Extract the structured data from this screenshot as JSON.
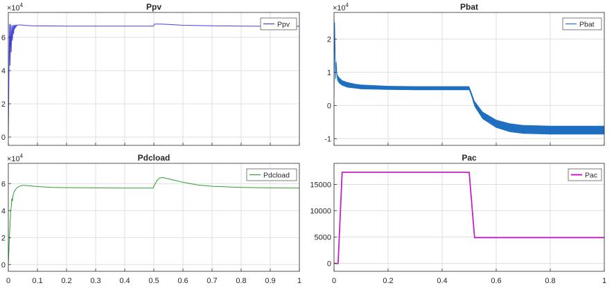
{
  "chart_data": [
    {
      "type": "line",
      "title": "Ppv",
      "exponent_label": "×10",
      "exponent_power": "4",
      "xlim": [
        0,
        1
      ],
      "ylim": [
        -0.5,
        7.5
      ],
      "yticks": [
        0,
        2,
        4,
        6
      ],
      "ytick_labels": [
        "0",
        "2",
        "4",
        "6"
      ],
      "xticks": [
        0,
        0.1,
        0.2,
        0.3,
        0.4,
        0.5,
        0.6,
        0.7,
        0.8,
        0.9,
        1
      ],
      "xtick_labels": [],
      "grid": true,
      "legend": "top-right",
      "series": [
        {
          "name": "Ppv",
          "color": "#4040d8",
          "x": [
            0,
            0.002,
            0.004,
            0.006,
            0.008,
            0.01,
            0.012,
            0.014,
            0.016,
            0.018,
            0.02,
            0.022,
            0.024,
            0.026,
            0.028,
            0.03,
            0.035,
            0.04,
            0.05,
            0.06,
            0.08,
            0.1,
            0.2,
            0.3,
            0.4,
            0.498,
            0.5,
            0.502,
            0.52,
            0.55,
            0.6,
            0.7,
            0.8,
            0.9,
            1.0
          ],
          "values": [
            0,
            3.2,
            6.8,
            4.3,
            6.8,
            5.1,
            6.7,
            5.8,
            6.75,
            6.2,
            6.75,
            6.5,
            6.75,
            6.6,
            6.75,
            6.72,
            6.75,
            6.75,
            6.74,
            6.72,
            6.7,
            6.69,
            6.68,
            6.68,
            6.68,
            6.68,
            6.72,
            6.8,
            6.8,
            6.78,
            6.73,
            6.7,
            6.68,
            6.67,
            6.67
          ]
        }
      ]
    },
    {
      "type": "line",
      "title": "Pbat",
      "exponent_label": "×10",
      "exponent_power": "4",
      "xlim": [
        0,
        1
      ],
      "ylim": [
        -1.2,
        2.8
      ],
      "yticks": [
        -1,
        0,
        1,
        2
      ],
      "ytick_labels": [
        "-1",
        "0",
        "1",
        "2"
      ],
      "xticks": [
        0,
        0.2,
        0.4,
        0.6,
        0.8,
        1
      ],
      "xtick_labels": [],
      "grid": true,
      "legend": "top-right",
      "series": [
        {
          "name": "Pbat",
          "color": "#1f6fc0",
          "x": [
            0,
            0.002,
            0.004,
            0.006,
            0.008,
            0.01,
            0.012,
            0.015,
            0.02,
            0.03,
            0.05,
            0.08,
            0.1,
            0.2,
            0.3,
            0.4,
            0.49,
            0.5,
            0.51,
            0.52,
            0.55,
            0.6,
            0.65,
            0.7,
            0.8,
            0.9,
            1.0
          ],
          "values": [
            0.3,
            2.5,
            1.6,
            0.8,
            1.3,
            1.0,
            0.85,
            0.8,
            0.75,
            0.68,
            0.62,
            0.58,
            0.56,
            0.53,
            0.52,
            0.52,
            0.52,
            0.52,
            0.3,
            0.05,
            -0.3,
            -0.55,
            -0.67,
            -0.72,
            -0.74,
            -0.74,
            -0.74
          ],
          "band": [
            0.12,
            0.12,
            0.12,
            0.1,
            0.1,
            0.09,
            0.09,
            0.09,
            0.09,
            0.08,
            0.08,
            0.07,
            0.07,
            0.06,
            0.06,
            0.06,
            0.06,
            0.06,
            0.07,
            0.09,
            0.11,
            0.12,
            0.13,
            0.13,
            0.13,
            0.13,
            0.13
          ]
        }
      ]
    },
    {
      "type": "line",
      "title": "Pdcload",
      "exponent_label": "×10",
      "exponent_power": "4",
      "xlim": [
        0,
        1
      ],
      "ylim": [
        -0.5,
        7.5
      ],
      "yticks": [
        0,
        2,
        4,
        6
      ],
      "ytick_labels": [
        "0",
        "2",
        "4",
        "6"
      ],
      "xticks": [
        0,
        0.1,
        0.2,
        0.3,
        0.4,
        0.5,
        0.6,
        0.7,
        0.8,
        0.9,
        1
      ],
      "xtick_labels": [
        "0",
        "0.1",
        "0.2",
        "0.3",
        "0.4",
        "0.5",
        "0.6",
        "0.7",
        "0.8",
        "0.9",
        "1"
      ],
      "grid": true,
      "legend": "top-right",
      "series": [
        {
          "name": "Pdcload",
          "color": "#2ca02c",
          "x": [
            0,
            0.002,
            0.004,
            0.006,
            0.008,
            0.01,
            0.012,
            0.014,
            0.016,
            0.02,
            0.03,
            0.04,
            0.05,
            0.06,
            0.08,
            0.1,
            0.15,
            0.2,
            0.3,
            0.4,
            0.498,
            0.5,
            0.51,
            0.52,
            0.53,
            0.55,
            0.6,
            0.65,
            0.7,
            0.8,
            0.9,
            1.0
          ],
          "values": [
            0,
            1.0,
            2.2,
            3.0,
            3.9,
            4.3,
            4.9,
            4.7,
            5.1,
            5.4,
            5.7,
            5.82,
            5.87,
            5.86,
            5.82,
            5.78,
            5.72,
            5.7,
            5.68,
            5.67,
            5.67,
            5.8,
            6.2,
            6.42,
            6.45,
            6.35,
            6.1,
            5.9,
            5.8,
            5.72,
            5.68,
            5.67
          ]
        }
      ]
    },
    {
      "type": "line",
      "title": "Pac",
      "exponent_label": "",
      "exponent_power": "",
      "xlim": [
        0,
        1
      ],
      "ylim": [
        -1500,
        19000
      ],
      "yticks": [
        0,
        5000,
        10000,
        15000
      ],
      "ytick_labels": [
        "0",
        "5000",
        "10000",
        "15000"
      ],
      "xticks": [
        0,
        0.2,
        0.4,
        0.6,
        0.8,
        1
      ],
      "xtick_labels": [
        "0",
        "0.2",
        "0.4",
        "0.6",
        "0.8",
        "1"
      ],
      "grid": true,
      "legend": "top-right",
      "series": [
        {
          "name": "Pac",
          "color": "#c020c8",
          "x": [
            0,
            0.015,
            0.03,
            0.5,
            0.52,
            1.0
          ],
          "values": [
            0,
            0,
            17300,
            17300,
            4900,
            4900
          ]
        }
      ]
    }
  ]
}
